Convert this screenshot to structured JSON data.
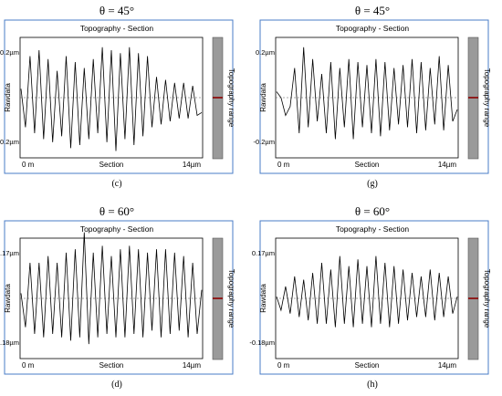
{
  "panels": [
    {
      "id": "c",
      "header": "θ = 45°",
      "caption": "(c)",
      "section_title": "Topography - Section",
      "ylabel": "Rawdata",
      "y_top_label": "0.2µm",
      "y_bottom_label": "-0.2µm",
      "x_left_label": "0 m",
      "x_center_label": "Section",
      "x_right_label": "14µm",
      "range_label": "Topography range"
    },
    {
      "id": "g",
      "header": "θ = 45°",
      "caption": "(g)",
      "section_title": "Topography - Section",
      "ylabel": "Rawdata",
      "y_top_label": "0.2µm",
      "y_bottom_label": "-0.2µm",
      "x_left_label": "0 m",
      "x_center_label": "Section",
      "x_right_label": "14µm",
      "range_label": "Topography range"
    },
    {
      "id": "d",
      "header": "θ = 60°",
      "caption": "(d)",
      "section_title": "Topography - Section",
      "ylabel": "Rawdata",
      "y_top_label": "0.17µm",
      "y_bottom_label": "-0.18µm",
      "x_left_label": "0 m",
      "x_center_label": "Section",
      "x_right_label": "14µm",
      "range_label": "Topography range"
    },
    {
      "id": "h",
      "header": "θ = 60°",
      "caption": "(h)",
      "section_title": "Topography - Section",
      "ylabel": "Rawdata",
      "y_top_label": "0.17µm",
      "y_bottom_label": "-0.18µm",
      "x_left_label": "0 m",
      "x_center_label": "Section",
      "x_right_label": "14µm",
      "range_label": "Topography range"
    }
  ],
  "chart_data": [
    {
      "type": "line",
      "panel": "c",
      "title": "Topography - Section",
      "xlabel": "Section",
      "ylabel": "Rawdata",
      "xlim": [
        0,
        14
      ],
      "ylim": [
        -0.2,
        0.2
      ],
      "x_unit": "µm",
      "y_unit": "µm",
      "series": [
        {
          "x": [
            0,
            0.35,
            0.7,
            1.05,
            1.4,
            1.75,
            2.1,
            2.45,
            2.8,
            3.15,
            3.5,
            3.85,
            4.2,
            4.55,
            4.9,
            5.25,
            5.6,
            5.95,
            6.3,
            6.65,
            7.0,
            7.35,
            7.7,
            8.05,
            8.4,
            8.75,
            9.1,
            9.45,
            9.8,
            10.15,
            10.5,
            10.85,
            11.2,
            11.55,
            11.9,
            12.25,
            12.6,
            12.95,
            13.3,
            13.65,
            14.0
          ],
          "y": [
            0.03,
            -0.1,
            0.14,
            -0.12,
            0.16,
            -0.14,
            0.13,
            -0.15,
            0.09,
            -0.13,
            0.14,
            -0.17,
            0.12,
            -0.16,
            0.1,
            -0.14,
            0.13,
            -0.12,
            0.17,
            -0.15,
            0.16,
            -0.18,
            0.15,
            -0.14,
            0.17,
            -0.16,
            0.15,
            -0.13,
            0.14,
            -0.1,
            0.07,
            -0.09,
            0.06,
            -0.08,
            0.05,
            -0.07,
            0.05,
            -0.07,
            0.04,
            -0.06,
            -0.05
          ]
        }
      ]
    },
    {
      "type": "line",
      "panel": "g",
      "title": "Topography - Section",
      "xlabel": "Section",
      "ylabel": "Rawdata",
      "xlim": [
        0,
        14
      ],
      "ylim": [
        -0.2,
        0.2
      ],
      "x_unit": "µm",
      "y_unit": "µm",
      "series": [
        {
          "x": [
            0,
            0.35,
            0.7,
            1.05,
            1.4,
            1.75,
            2.1,
            2.45,
            2.8,
            3.15,
            3.5,
            3.85,
            4.2,
            4.55,
            4.9,
            5.25,
            5.6,
            5.95,
            6.3,
            6.65,
            7.0,
            7.35,
            7.7,
            8.05,
            8.4,
            8.75,
            9.1,
            9.45,
            9.8,
            10.15,
            10.5,
            10.85,
            11.2,
            11.55,
            11.9,
            12.25,
            12.6,
            12.95,
            13.3,
            13.65,
            14.0
          ],
          "y": [
            0.02,
            0.0,
            -0.06,
            -0.03,
            0.1,
            -0.12,
            0.17,
            -0.1,
            0.13,
            -0.08,
            0.08,
            -0.12,
            0.12,
            -0.14,
            0.1,
            -0.1,
            0.13,
            -0.14,
            0.12,
            -0.1,
            0.11,
            -0.12,
            0.13,
            -0.13,
            0.12,
            -0.11,
            0.1,
            -0.09,
            0.11,
            -0.1,
            0.13,
            -0.12,
            0.12,
            -0.11,
            0.1,
            -0.09,
            0.14,
            -0.11,
            0.11,
            -0.08,
            -0.04
          ]
        }
      ]
    },
    {
      "type": "line",
      "panel": "d",
      "title": "Topography - Section",
      "xlabel": "Section",
      "ylabel": "Rawdata",
      "xlim": [
        0,
        14
      ],
      "ylim": [
        -0.18,
        0.17
      ],
      "x_unit": "µm",
      "y_unit": "µm",
      "series": [
        {
          "x": [
            0,
            0.35,
            0.7,
            1.05,
            1.4,
            1.75,
            2.1,
            2.45,
            2.8,
            3.15,
            3.5,
            3.85,
            4.2,
            4.55,
            4.9,
            5.25,
            5.6,
            5.95,
            6.3,
            6.65,
            7.0,
            7.35,
            7.7,
            8.05,
            8.4,
            8.75,
            9.1,
            9.45,
            9.8,
            10.15,
            10.5,
            10.85,
            11.2,
            11.55,
            11.9,
            12.25,
            12.6,
            12.95,
            13.3,
            13.65,
            14.0
          ],
          "y": [
            0.01,
            -0.09,
            0.1,
            -0.11,
            0.1,
            -0.12,
            0.12,
            -0.11,
            0.1,
            -0.12,
            0.13,
            -0.13,
            0.14,
            -0.12,
            0.19,
            -0.14,
            0.13,
            -0.12,
            0.15,
            -0.11,
            0.12,
            -0.12,
            0.14,
            -0.12,
            0.15,
            -0.11,
            0.14,
            -0.12,
            0.13,
            -0.1,
            0.14,
            -0.12,
            0.14,
            -0.11,
            0.13,
            -0.1,
            0.12,
            -0.12,
            0.1,
            -0.11,
            0.02
          ]
        }
      ]
    },
    {
      "type": "line",
      "panel": "h",
      "title": "Topography - Section",
      "xlabel": "Section",
      "ylabel": "Rawdata",
      "xlim": [
        0,
        14
      ],
      "ylim": [
        -0.18,
        0.17
      ],
      "x_unit": "µm",
      "y_unit": "µm",
      "series": [
        {
          "x": [
            0,
            0.35,
            0.7,
            1.05,
            1.4,
            1.75,
            2.1,
            2.45,
            2.8,
            3.15,
            3.5,
            3.85,
            4.2,
            4.55,
            4.9,
            5.25,
            5.6,
            5.95,
            6.3,
            6.65,
            7.0,
            7.35,
            7.7,
            8.05,
            8.4,
            8.75,
            9.1,
            9.45,
            9.8,
            10.15,
            10.5,
            10.85,
            11.2,
            11.55,
            11.9,
            12.25,
            12.6,
            12.95,
            13.3,
            13.65,
            14.0
          ],
          "y": [
            0.0,
            -0.04,
            0.03,
            -0.05,
            0.06,
            -0.06,
            0.05,
            -0.07,
            0.07,
            -0.08,
            0.1,
            -0.08,
            0.08,
            -0.09,
            0.12,
            -0.08,
            0.09,
            -0.09,
            0.11,
            -0.08,
            0.09,
            -0.09,
            0.12,
            -0.08,
            0.1,
            -0.09,
            0.09,
            -0.08,
            0.08,
            -0.07,
            0.07,
            -0.06,
            0.06,
            -0.06,
            0.08,
            -0.07,
            0.07,
            -0.06,
            0.06,
            -0.05,
            0.0
          ]
        }
      ]
    }
  ]
}
